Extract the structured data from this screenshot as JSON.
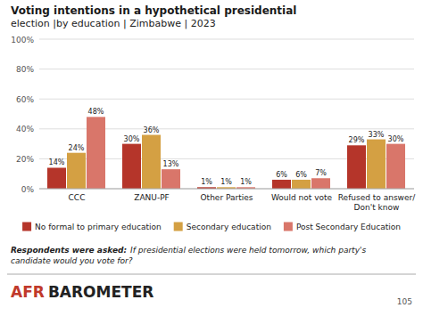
{
  "chart_data": {
    "type": "bar",
    "title": "Voting intentions in a hypothetical presidential",
    "subtitle": "election  |by education  |  Zimbabwe  |  2023",
    "categories": [
      "CCC",
      "ZANU-PF",
      "Other Parties",
      "Would not vote",
      "Refused to answer/\nDon't know"
    ],
    "series": [
      {
        "name": "No formal to primary education",
        "color": "#b5352a",
        "values": [
          14,
          30,
          1,
          6,
          29
        ],
        "value_labels": [
          "14%",
          "30%",
          "1%",
          "6%",
          "29%"
        ]
      },
      {
        "name": "Secondary education",
        "color": "#d4a043",
        "values": [
          24,
          36,
          1,
          6,
          33
        ],
        "value_labels": [
          "24%",
          "36%",
          "1%",
          "6%",
          "33%"
        ]
      },
      {
        "name": "Post Secondary Education",
        "color": "#d9766a",
        "values": [
          48,
          13,
          1,
          7,
          30
        ],
        "value_labels": [
          "48%",
          "13%",
          "1%",
          "7%",
          "30%"
        ]
      }
    ],
    "ylim": [
      0,
      100
    ],
    "yticks": [
      {
        "value": 0,
        "label": "0%"
      },
      {
        "value": 20,
        "label": "20%"
      },
      {
        "value": 40,
        "label": "40%"
      },
      {
        "value": 60,
        "label": "60%"
      },
      {
        "value": 80,
        "label": "80%"
      },
      {
        "value": 100,
        "label": "100%"
      }
    ],
    "grid": true,
    "legend": "bottom",
    "data_labels": true,
    "annotations": [
      "Respondents were asked:",
      "If presidential elections were held tomorrow, which party's\ncandidate would you vote for?",
      "AFR",
      "BAROMETER",
      "105"
    ]
  }
}
